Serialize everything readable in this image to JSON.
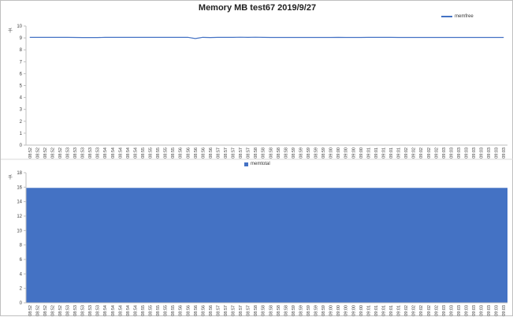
{
  "title": "Memory MB test67  2019/9/27",
  "colors": {
    "series": "#4472c4",
    "axis": "#bfbfbf",
    "text": "#404040"
  },
  "chart_data": [
    {
      "type": "line",
      "unit_label": "千",
      "legend_position": "top-right",
      "grid": false,
      "ylim": [
        0,
        10
      ],
      "yticks": [
        0,
        1,
        2,
        3,
        4,
        5,
        6,
        7,
        8,
        9,
        10
      ],
      "x": [
        "08:52",
        "08:52",
        "08:52",
        "08:52",
        "08:52",
        "08:53",
        "08:53",
        "08:53",
        "08:53",
        "08:53",
        "08:54",
        "08:54",
        "08:54",
        "08:54",
        "08:54",
        "08:55",
        "08:55",
        "08:55",
        "08:55",
        "08:55",
        "08:56",
        "08:56",
        "08:56",
        "08:56",
        "08:56",
        "08:57",
        "08:57",
        "08:57",
        "08:57",
        "08:57",
        "08:58",
        "08:58",
        "08:58",
        "08:58",
        "08:58",
        "08:59",
        "08:59",
        "08:59",
        "08:59",
        "08:59",
        "09:00",
        "09:00",
        "09:00",
        "09:00",
        "09:00",
        "09:01",
        "09:01",
        "09:01",
        "09:01",
        "09:01",
        "09:02",
        "09:02",
        "09:02",
        "09:02",
        "09:02",
        "09:03",
        "09:03",
        "09:03",
        "09:03",
        "09:03",
        "09:03",
        "09:03",
        "09:03",
        "09:03"
      ],
      "series": [
        {
          "name": "memfree",
          "values": [
            9.05,
            9.05,
            9.05,
            9.05,
            9.05,
            9.05,
            9.04,
            9.03,
            9.03,
            9.03,
            9.05,
            9.05,
            9.05,
            9.05,
            9.05,
            9.05,
            9.05,
            9.05,
            9.05,
            9.05,
            9.05,
            9.05,
            8.95,
            9.05,
            9.03,
            9.05,
            9.05,
            9.05,
            9.06,
            9.05,
            9.06,
            9.05,
            9.04,
            9.04,
            9.04,
            9.04,
            9.04,
            9.04,
            9.04,
            9.04,
            9.04,
            9.05,
            9.04,
            9.04,
            9.04,
            9.05,
            9.05,
            9.05,
            9.05,
            9.04,
            9.04,
            9.04,
            9.04,
            9.04,
            9.04,
            9.04,
            9.04,
            9.04,
            9.04,
            9.04,
            9.04,
            9.04,
            9.04,
            9.04
          ]
        }
      ]
    },
    {
      "type": "area",
      "unit_label": "千",
      "legend_position": "top-center",
      "grid": false,
      "ylim": [
        0,
        18
      ],
      "yticks": [
        0,
        2,
        4,
        6,
        8,
        10,
        12,
        14,
        16,
        18
      ],
      "x": [
        "08:52",
        "08:52",
        "08:52",
        "08:52",
        "08:52",
        "08:53",
        "08:53",
        "08:53",
        "08:53",
        "08:53",
        "08:54",
        "08:54",
        "08:54",
        "08:54",
        "08:54",
        "08:55",
        "08:55",
        "08:55",
        "08:55",
        "08:55",
        "08:56",
        "08:56",
        "08:56",
        "08:56",
        "08:56",
        "08:57",
        "08:57",
        "08:57",
        "08:57",
        "08:57",
        "08:58",
        "08:58",
        "08:58",
        "08:58",
        "08:58",
        "08:59",
        "08:59",
        "08:59",
        "08:59",
        "08:59",
        "09:00",
        "09:00",
        "09:00",
        "09:00",
        "09:00",
        "09:01",
        "09:01",
        "09:01",
        "09:01",
        "09:01",
        "09:02",
        "09:02",
        "09:02",
        "09:02",
        "09:02",
        "09:03",
        "09:03",
        "09:03",
        "09:03",
        "09:03",
        "09:03",
        "09:03",
        "09:03",
        "09:03"
      ],
      "series": [
        {
          "name": "memtotal",
          "values": [
            15.9,
            15.9,
            15.9,
            15.9,
            15.9,
            15.9,
            15.9,
            15.9,
            15.9,
            15.9,
            15.9,
            15.9,
            15.9,
            15.9,
            15.9,
            15.9,
            15.9,
            15.9,
            15.9,
            15.9,
            15.9,
            15.9,
            15.9,
            15.9,
            15.9,
            15.9,
            15.9,
            15.9,
            15.9,
            15.9,
            15.9,
            15.9,
            15.9,
            15.9,
            15.9,
            15.9,
            15.9,
            15.9,
            15.9,
            15.9,
            15.9,
            15.9,
            15.9,
            15.9,
            15.9,
            15.9,
            15.9,
            15.9,
            15.9,
            15.9,
            15.9,
            15.9,
            15.9,
            15.9,
            15.9,
            15.9,
            15.9,
            15.9,
            15.9,
            15.9,
            15.9,
            15.9,
            15.9,
            15.9
          ]
        }
      ]
    }
  ]
}
